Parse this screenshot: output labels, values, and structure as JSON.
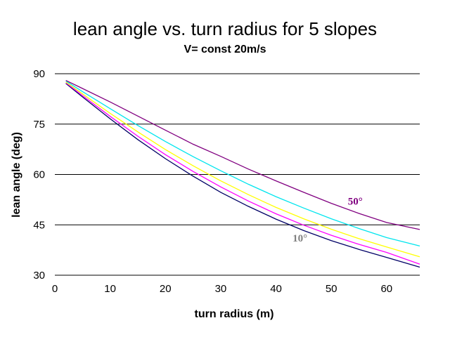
{
  "chart_data": {
    "type": "line",
    "title": "lean angle vs. turn radius for 5 slopes",
    "subtitle": "V= const 20m/s",
    "xlabel": "turn radius (m)",
    "ylabel": "lean angle (deg)",
    "xlim": [
      0,
      66
    ],
    "ylim": [
      30,
      90
    ],
    "xticks": [
      0,
      10,
      20,
      30,
      40,
      50,
      60
    ],
    "yticks": [
      30,
      45,
      60,
      75,
      90
    ],
    "grid": "horizontal",
    "legend": "none",
    "x": [
      2,
      5,
      10,
      15,
      20,
      25,
      30,
      35,
      40,
      45,
      50,
      55,
      60,
      66
    ],
    "series": [
      {
        "color": "#000066",
        "values": [
          87.1,
          83.1,
          76.6,
          70.4,
          64.7,
          59.5,
          54.7,
          50.5,
          46.7,
          43.3,
          40.3,
          37.7,
          35.3,
          32.4
        ]
      },
      {
        "color": "#ff00ff",
        "values": [
          87.3,
          83.5,
          77.3,
          71.4,
          65.9,
          60.9,
          56.3,
          52.1,
          48.3,
          44.9,
          41.9,
          39.2,
          36.8,
          33.3
        ]
      },
      {
        "color": "#ffff00",
        "values": [
          87.5,
          84.0,
          78.2,
          72.7,
          67.4,
          62.6,
          58.1,
          54.0,
          50.2,
          46.8,
          43.7,
          40.9,
          38.4,
          35.5
        ]
      },
      {
        "color": "#00e5ee",
        "values": [
          87.8,
          84.7,
          79.6,
          74.6,
          69.8,
          65.3,
          61.1,
          57.1,
          53.4,
          50.0,
          46.8,
          43.9,
          41.2,
          38.7
        ]
      },
      {
        "color": "#800080",
        "values": [
          88.0,
          85.6,
          81.6,
          77.4,
          73.2,
          69.0,
          65.4,
          61.6,
          58.1,
          54.7,
          51.4,
          48.4,
          45.7,
          43.6
        ]
      }
    ],
    "annotations": [
      {
        "text": "50°",
        "x": 53,
        "y": 51,
        "color": "#800080"
      },
      {
        "text": "10°",
        "x": 43,
        "y": 40,
        "color": "#808080"
      }
    ]
  }
}
